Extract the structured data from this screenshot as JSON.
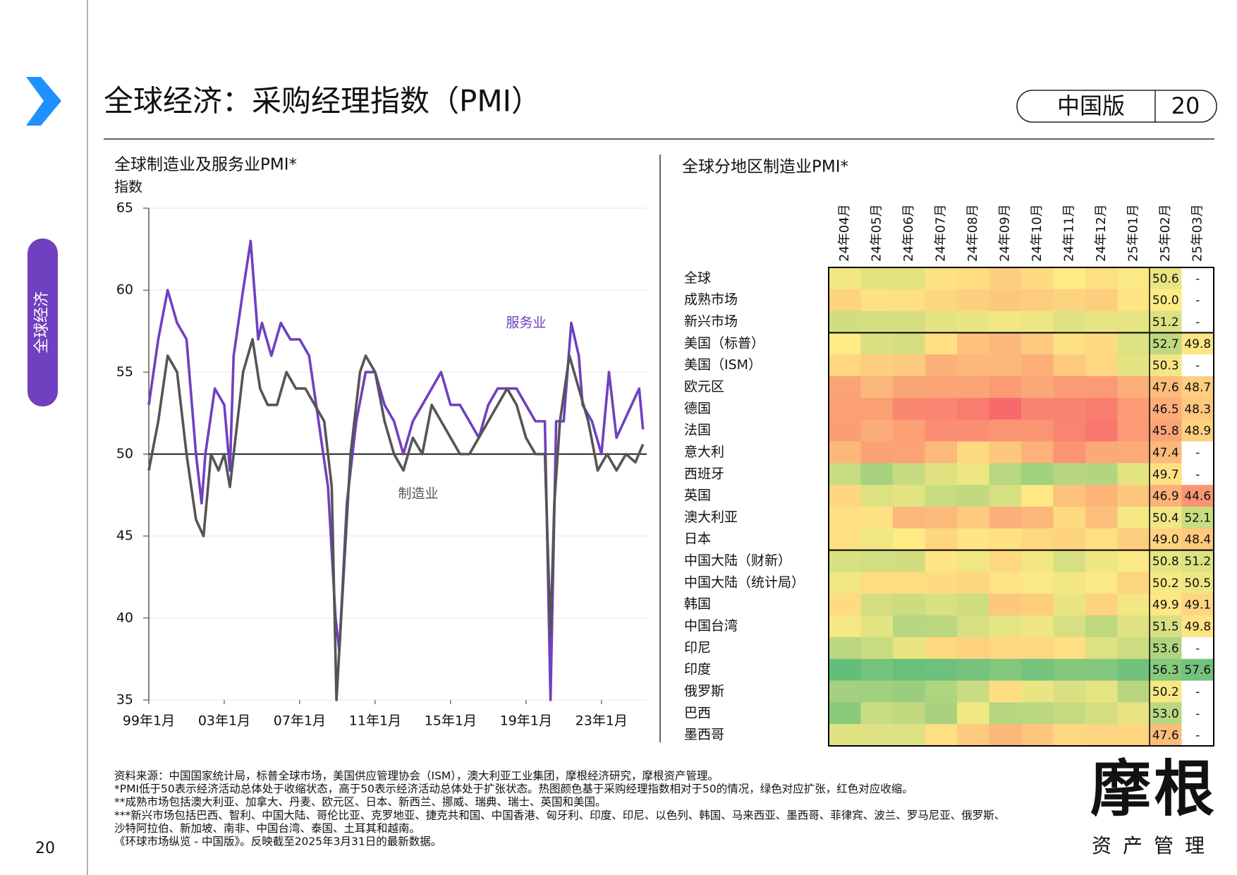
{
  "header": {
    "title": "全球经济：采购经理指数（PMI）",
    "edition": "中国版",
    "page": "20"
  },
  "side_tab": "全球经济",
  "page_number": "20",
  "chart_data": [
    {
      "type": "line",
      "title": "全球制造业及服务业PMI*",
      "ylabel": "指数",
      "xlim": [
        1999,
        2025.4
      ],
      "xticks": [
        {
          "value": 1999,
          "label": "99年1月"
        },
        {
          "value": 2003,
          "label": "03年1月"
        },
        {
          "value": 2007,
          "label": "07年1月"
        },
        {
          "value": 2011,
          "label": "11年1月"
        },
        {
          "value": 2015,
          "label": "15年1月"
        },
        {
          "value": 2019,
          "label": "19年1月"
        },
        {
          "value": 2023,
          "label": "23年1月"
        }
      ],
      "ylim": [
        35,
        65
      ],
      "yticks": [
        35,
        40,
        45,
        50,
        55,
        60,
        65
      ],
      "grid": true,
      "reference_line": 50,
      "series": [
        {
          "name": "服务业",
          "color": "#7040c0",
          "x": [
            1999,
            1999.5,
            2000,
            2000.5,
            2001,
            2001.5,
            2001.8,
            2002,
            2002.5,
            2003,
            2003.3,
            2003.5,
            2004,
            2004.4,
            2004.8,
            2005,
            2005.5,
            2006,
            2006.5,
            2007,
            2007.5,
            2008,
            2008.5,
            2008.9,
            2009.1,
            2009.5,
            2010,
            2010.5,
            2011,
            2011.5,
            2012,
            2012.5,
            2013,
            2013.5,
            2014,
            2014.5,
            2015,
            2015.5,
            2016,
            2016.5,
            2017,
            2017.5,
            2018,
            2018.5,
            2019,
            2019.5,
            2020,
            2020.3,
            2020.6,
            2021,
            2021.4,
            2021.8,
            2022,
            2022.5,
            2023,
            2023.4,
            2023.8,
            2024.2,
            2024.6,
            2025,
            2025.2
          ],
          "values": [
            53,
            57,
            60,
            58,
            57,
            50,
            47,
            50,
            54,
            53,
            49,
            56,
            60,
            63,
            57,
            58,
            56,
            58,
            57,
            57,
            56,
            52,
            48,
            40,
            38,
            47,
            52,
            55,
            55,
            53,
            52,
            50,
            52,
            53,
            54,
            55,
            53,
            53,
            52,
            51,
            53,
            54,
            54,
            54,
            53,
            52,
            52,
            35,
            52,
            52,
            58,
            56,
            53,
            52,
            50,
            55,
            51,
            52,
            53,
            54,
            51.5
          ]
        },
        {
          "name": "制造业",
          "color": "#555555",
          "x": [
            1999,
            1999.5,
            2000,
            2000.5,
            2001,
            2001.5,
            2001.9,
            2002.3,
            2002.7,
            2003,
            2003.3,
            2003.6,
            2004,
            2004.5,
            2004.9,
            2005.3,
            2005.8,
            2006.3,
            2006.8,
            2007.3,
            2007.8,
            2008.3,
            2008.7,
            2008.95,
            2009.3,
            2009.7,
            2010.2,
            2010.5,
            2011,
            2011.5,
            2012,
            2012.5,
            2013,
            2013.5,
            2014,
            2014.5,
            2015,
            2015.5,
            2016,
            2016.5,
            2017,
            2017.5,
            2018,
            2018.5,
            2019,
            2019.5,
            2020,
            2020.3,
            2020.5,
            2020.8,
            2021.3,
            2021.8,
            2022.3,
            2022.8,
            2023.3,
            2023.8,
            2024.3,
            2024.8,
            2025.2
          ],
          "values": [
            49,
            52,
            56,
            55,
            50,
            46,
            45,
            50,
            49,
            50,
            48,
            51,
            55,
            57,
            54,
            53,
            53,
            55,
            54,
            54,
            53,
            52,
            48,
            35,
            42,
            50,
            55,
            56,
            55,
            52,
            50,
            49,
            51,
            50,
            53,
            52,
            51,
            50,
            50,
            51,
            52,
            53,
            54,
            53,
            51,
            50,
            50,
            39,
            47,
            52,
            56,
            54,
            52,
            49,
            50,
            49,
            50,
            49.5,
            50.6
          ]
        }
      ]
    },
    {
      "type": "heatmap",
      "title": "全球分地区制造业PMI*",
      "color_scale": {
        "center": 50,
        "low": "#f8696b",
        "mid": "#ffeb84",
        "high": "#63be7b"
      },
      "columns": [
        "24年04月",
        "24年05月",
        "24年06月",
        "24年07月",
        "24年08月",
        "24年09月",
        "24年10月",
        "24年11月",
        "24年12月",
        "25年01月",
        "25年02月",
        "25年03月"
      ],
      "rows": [
        {
          "name": "全球",
          "values": [
            50.3,
            50.9,
            50.9,
            49.7,
            49.5,
            48.8,
            49.4,
            50.0,
            49.6,
            50.1,
            50.6,
            null
          ],
          "value_labels": [
            null,
            null,
            null,
            null,
            null,
            null,
            null,
            null,
            null,
            null,
            "50.6",
            "-"
          ]
        },
        {
          "name": "成熟市场",
          "values": [
            49.0,
            49.7,
            49.6,
            49.1,
            48.8,
            48.3,
            48.6,
            49.0,
            48.7,
            49.8,
            50.0,
            null
          ],
          "value_labels": [
            null,
            null,
            null,
            null,
            null,
            null,
            null,
            null,
            null,
            null,
            "50.0",
            "-"
          ]
        },
        {
          "name": "新兴市场",
          "values": [
            51.8,
            51.6,
            51.6,
            50.9,
            50.6,
            50.3,
            50.5,
            51.0,
            50.7,
            50.8,
            51.2,
            null
          ],
          "value_labels": [
            null,
            null,
            null,
            null,
            null,
            null,
            null,
            null,
            null,
            null,
            "51.2",
            "-"
          ]
        },
        {
          "name": "美国（标普）",
          "values": [
            50.0,
            51.3,
            51.6,
            49.6,
            47.9,
            47.3,
            48.5,
            49.7,
            49.4,
            51.2,
            52.7,
            49.8
          ],
          "value_labels": [
            null,
            null,
            null,
            null,
            null,
            null,
            null,
            null,
            null,
            null,
            "52.7",
            "49.8"
          ]
        },
        {
          "name": "美国（ISM）",
          "values": [
            49.2,
            48.7,
            48.5,
            46.8,
            47.2,
            47.2,
            46.5,
            48.4,
            49.2,
            50.9,
            50.3,
            null
          ],
          "value_labels": [
            null,
            null,
            null,
            null,
            null,
            null,
            null,
            null,
            null,
            null,
            "50.3",
            "-"
          ]
        },
        {
          "name": "欧元区",
          "values": [
            45.7,
            47.3,
            45.8,
            45.8,
            45.8,
            45.0,
            46.0,
            45.2,
            45.1,
            46.6,
            47.6,
            48.7
          ],
          "value_labels": [
            null,
            null,
            null,
            null,
            null,
            null,
            null,
            null,
            null,
            null,
            "47.6",
            "48.7"
          ]
        },
        {
          "name": "德国",
          "values": [
            45.4,
            45.4,
            43.5,
            43.2,
            42.4,
            40.6,
            43.0,
            43.0,
            42.5,
            45.0,
            46.5,
            48.3
          ],
          "value_labels": [
            null,
            null,
            null,
            null,
            null,
            null,
            null,
            null,
            null,
            null,
            "46.5",
            "48.3"
          ]
        },
        {
          "name": "法国",
          "values": [
            45.3,
            46.4,
            45.4,
            44.0,
            43.9,
            44.6,
            44.5,
            43.1,
            41.9,
            45.0,
            45.8,
            48.9
          ],
          "value_labels": [
            null,
            null,
            null,
            null,
            null,
            null,
            null,
            null,
            null,
            null,
            "45.8",
            "48.9"
          ]
        },
        {
          "name": "意大利",
          "values": [
            47.3,
            45.6,
            45.7,
            47.4,
            49.4,
            48.3,
            46.9,
            44.5,
            46.2,
            46.3,
            47.4,
            null
          ],
          "value_labels": [
            null,
            null,
            null,
            null,
            null,
            null,
            null,
            null,
            null,
            null,
            "47.4",
            "-"
          ]
        },
        {
          "name": "西班牙",
          "values": [
            52.2,
            54.0,
            52.3,
            51.0,
            50.5,
            53.0,
            54.5,
            53.1,
            53.3,
            50.9,
            49.7,
            null
          ],
          "value_labels": [
            null,
            null,
            null,
            null,
            null,
            null,
            null,
            null,
            null,
            null,
            "49.7",
            "-"
          ]
        },
        {
          "name": "英国",
          "values": [
            49.1,
            51.2,
            50.9,
            52.1,
            52.5,
            51.5,
            49.9,
            48.0,
            47.0,
            48.3,
            46.9,
            44.6
          ],
          "value_labels": [
            null,
            null,
            null,
            null,
            null,
            null,
            null,
            null,
            null,
            null,
            "46.9",
            "44.6"
          ]
        },
        {
          "name": "澳大利亚",
          "values": [
            49.6,
            49.7,
            47.2,
            47.5,
            48.5,
            46.7,
            47.3,
            49.4,
            47.8,
            50.2,
            50.4,
            52.1
          ],
          "value_labels": [
            null,
            null,
            null,
            null,
            null,
            null,
            null,
            null,
            null,
            null,
            "50.4",
            "52.1"
          ]
        },
        {
          "name": "日本",
          "values": [
            49.6,
            50.4,
            50.0,
            49.1,
            49.8,
            49.7,
            49.2,
            49.0,
            49.6,
            48.7,
            49.0,
            48.4
          ],
          "value_labels": [
            null,
            null,
            null,
            null,
            null,
            null,
            null,
            null,
            null,
            null,
            "49.0",
            "48.4"
          ]
        },
        {
          "name": "中国大陆（财新）",
          "values": [
            51.4,
            51.7,
            51.8,
            49.8,
            50.4,
            49.3,
            50.3,
            51.5,
            50.5,
            50.1,
            50.8,
            51.2
          ],
          "value_labels": [
            null,
            null,
            null,
            null,
            null,
            null,
            null,
            null,
            null,
            null,
            "50.8",
            "51.2"
          ]
        },
        {
          "name": "中国大陆（统计局）",
          "values": [
            50.4,
            49.5,
            49.5,
            49.4,
            49.1,
            49.8,
            50.1,
            50.3,
            50.1,
            49.1,
            50.2,
            50.5
          ],
          "value_labels": [
            null,
            null,
            null,
            null,
            null,
            null,
            null,
            null,
            null,
            null,
            "50.2",
            "50.5"
          ]
        },
        {
          "name": "韩国",
          "values": [
            49.4,
            51.6,
            52.0,
            51.4,
            51.9,
            48.3,
            48.7,
            50.6,
            49.0,
            50.3,
            49.9,
            49.1
          ],
          "value_labels": [
            null,
            null,
            null,
            null,
            null,
            null,
            null,
            null,
            null,
            null,
            "49.9",
            "49.1"
          ]
        },
        {
          "name": "中国台湾",
          "values": [
            50.2,
            50.9,
            53.2,
            52.9,
            51.5,
            50.8,
            50.5,
            51.5,
            52.7,
            51.1,
            51.5,
            49.8
          ],
          "value_labels": [
            null,
            null,
            null,
            null,
            null,
            null,
            null,
            null,
            null,
            null,
            "51.5",
            "49.8"
          ]
        },
        {
          "name": "印尼",
          "values": [
            52.9,
            52.1,
            50.7,
            49.3,
            48.9,
            49.2,
            49.2,
            49.6,
            51.2,
            51.9,
            53.6,
            null
          ],
          "value_labels": [
            null,
            null,
            null,
            null,
            null,
            null,
            null,
            null,
            null,
            null,
            "53.6",
            "-"
          ]
        },
        {
          "name": "印度",
          "values": [
            58.8,
            57.5,
            58.3,
            58.1,
            57.5,
            56.5,
            57.5,
            56.5,
            56.4,
            57.7,
            56.3,
            57.6
          ],
          "value_labels": [
            null,
            null,
            null,
            null,
            null,
            null,
            null,
            null,
            null,
            null,
            "56.3",
            "57.6"
          ]
        },
        {
          "name": "俄罗斯",
          "values": [
            54.3,
            54.4,
            54.9,
            53.6,
            52.1,
            49.5,
            50.6,
            51.3,
            50.8,
            53.1,
            50.2,
            null
          ],
          "value_labels": [
            null,
            null,
            null,
            null,
            null,
            null,
            null,
            null,
            null,
            null,
            "50.2",
            "-"
          ]
        },
        {
          "name": "巴西",
          "values": [
            55.9,
            52.1,
            52.5,
            54.0,
            50.4,
            53.2,
            52.9,
            52.3,
            51.6,
            50.7,
            53.0,
            null
          ],
          "value_labels": [
            null,
            null,
            null,
            null,
            null,
            null,
            null,
            null,
            null,
            null,
            "53.0",
            "-"
          ]
        },
        {
          "name": "墨西哥",
          "values": [
            51.0,
            51.1,
            51.1,
            49.6,
            48.5,
            47.3,
            48.2,
            49.3,
            49.1,
            49.1,
            47.6,
            null
          ],
          "value_labels": [
            null,
            null,
            null,
            null,
            null,
            null,
            null,
            null,
            null,
            null,
            "47.6",
            "-"
          ]
        }
      ]
    }
  ],
  "notes": [
    "资料来源：中国国家统计局，标普全球市场，美国供应管理协会（ISM），澳大利亚工业集团，摩根经济研究，摩根资产管理。",
    "*PMI低于50表示经济活动总体处于收缩状态，高于50表示经济活动总体处于扩张状态。热图颜色基于采购经理指数相对于50的情况，绿色对应扩张，红色对应收缩。",
    "**成熟市场包括澳大利亚、加拿大、丹麦、欧元区、日本、新西兰、挪威、瑞典、瑞士、英国和美国。",
    "***新兴市场包括巴西、智利、中国大陆、哥伦比亚、克罗地亚、捷克共和国、中国香港、匈牙利、印度、印尼、以色列、韩国、马来西亚、墨西哥、菲律宾、波兰、罗马尼亚、俄罗斯、",
    "沙特阿拉伯、新加坡、南非、中国台湾、泰国、土耳其和越南。",
    "《环球市场纵览 - 中国版》。反映截至2025年3月31日的最新数据。"
  ],
  "logo": {
    "name": "摩根",
    "tagline": "资产管理"
  }
}
